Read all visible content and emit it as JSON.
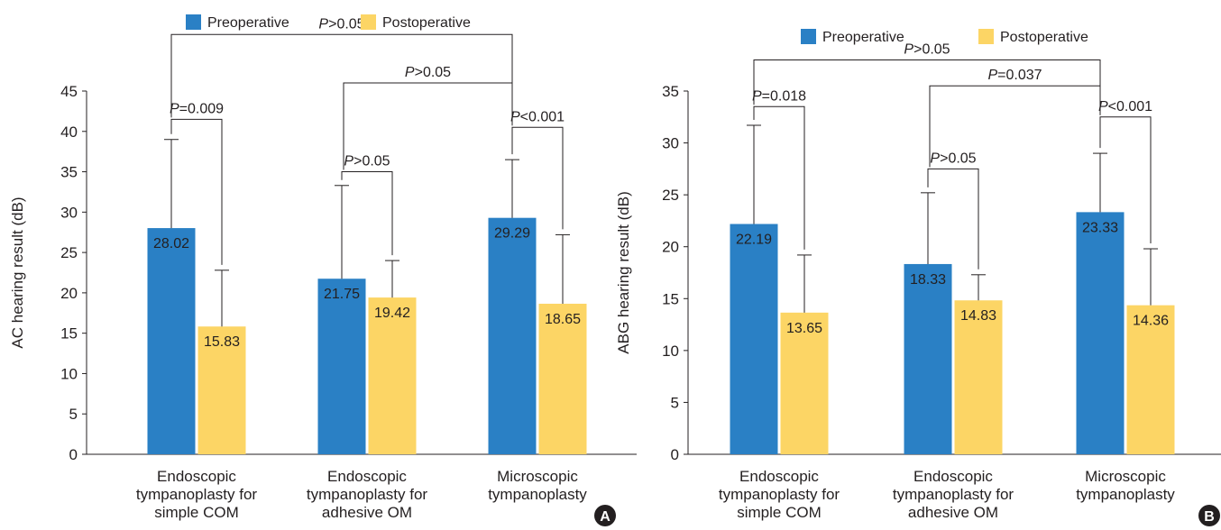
{
  "colors": {
    "preoperative": "#2a80c5",
    "postoperative": "#fcd565",
    "axis": "#231f20",
    "panel_badge": "#231f20"
  },
  "chart_data": [
    {
      "type": "bar",
      "panel_label": "A",
      "ylabel": "AC hearing result (dB)",
      "ylim": [
        0,
        45
      ],
      "yticks": [
        0,
        5,
        10,
        15,
        20,
        25,
        30,
        35,
        40,
        45
      ],
      "categories": [
        [
          "Endoscopic",
          "tympanoplasty for",
          "simple COM"
        ],
        [
          "Endoscopic",
          "tympanoplasty for",
          "adhesive OM"
        ],
        [
          "Microscopic",
          "tympanoplasty"
        ]
      ],
      "legend": {
        "position": "top",
        "entries": [
          "Preoperative",
          "Postoperative"
        ]
      },
      "series": [
        {
          "name": "Preoperative",
          "values": [
            28.02,
            21.75,
            29.29
          ],
          "labels": [
            "28.02",
            "21.75",
            "29.29"
          ],
          "error_top": [
            39.0,
            33.3,
            36.5
          ]
        },
        {
          "name": "Postoperative",
          "values": [
            15.83,
            19.42,
            18.65
          ],
          "labels": [
            "15.83",
            "19.42",
            "18.65"
          ],
          "error_top": [
            22.8,
            24.0,
            27.2
          ]
        }
      ],
      "annotations": [
        {
          "p": "P",
          "text": "=0.009",
          "kind": "within",
          "group": 0,
          "y": 41.5
        },
        {
          "p": "P",
          "text": ">0.05",
          "kind": "within",
          "group": 1,
          "y": 35.0
        },
        {
          "p": "P",
          "text": "<0.001",
          "kind": "within",
          "group": 2,
          "y": 40.5
        },
        {
          "p": "P",
          "text": ">0.05",
          "kind": "between",
          "from_group": 1,
          "to_group": 2,
          "y": 46.0
        },
        {
          "p": "P",
          "text": ">0.05",
          "kind": "between",
          "from_group": 0,
          "to_group": 2,
          "y": 52.0
        }
      ]
    },
    {
      "type": "bar",
      "panel_label": "B",
      "ylabel": "ABG hearing result (dB)",
      "ylim": [
        0,
        35
      ],
      "yticks": [
        0,
        5,
        10,
        15,
        20,
        25,
        30,
        35
      ],
      "categories": [
        [
          "Endoscopic",
          "tympanoplasty for",
          "simple COM"
        ],
        [
          "Endoscopic",
          "tympanoplasty for",
          "adhesive OM"
        ],
        [
          "Microscopic",
          "tympanoplasty"
        ]
      ],
      "legend": {
        "position": "top",
        "entries": [
          "Preoperative",
          "Postoperative"
        ]
      },
      "series": [
        {
          "name": "Preoperative",
          "values": [
            22.19,
            18.33,
            23.33
          ],
          "labels": [
            "22.19",
            "18.33",
            "23.33"
          ],
          "error_top": [
            31.7,
            25.2,
            29.0
          ]
        },
        {
          "name": "Postoperative",
          "values": [
            13.65,
            14.83,
            14.36
          ],
          "labels": [
            "13.65",
            "14.83",
            "14.36"
          ],
          "error_top": [
            19.2,
            17.3,
            19.8
          ]
        }
      ],
      "annotations": [
        {
          "p": "P",
          "text": "=0.018",
          "kind": "within",
          "group": 0,
          "y": 33.5
        },
        {
          "p": "P",
          "text": ">0.05",
          "kind": "within",
          "group": 1,
          "y": 27.5
        },
        {
          "p": "P",
          "text": "<0.001",
          "kind": "within",
          "group": 2,
          "y": 32.5
        },
        {
          "p": "P",
          "text": "=0.037",
          "kind": "between",
          "from_group": 1,
          "to_group": 2,
          "y": 35.5
        },
        {
          "p": "P",
          "text": ">0.05",
          "kind": "between",
          "from_group": 0,
          "to_group": 2,
          "y": 38.0
        }
      ]
    }
  ]
}
